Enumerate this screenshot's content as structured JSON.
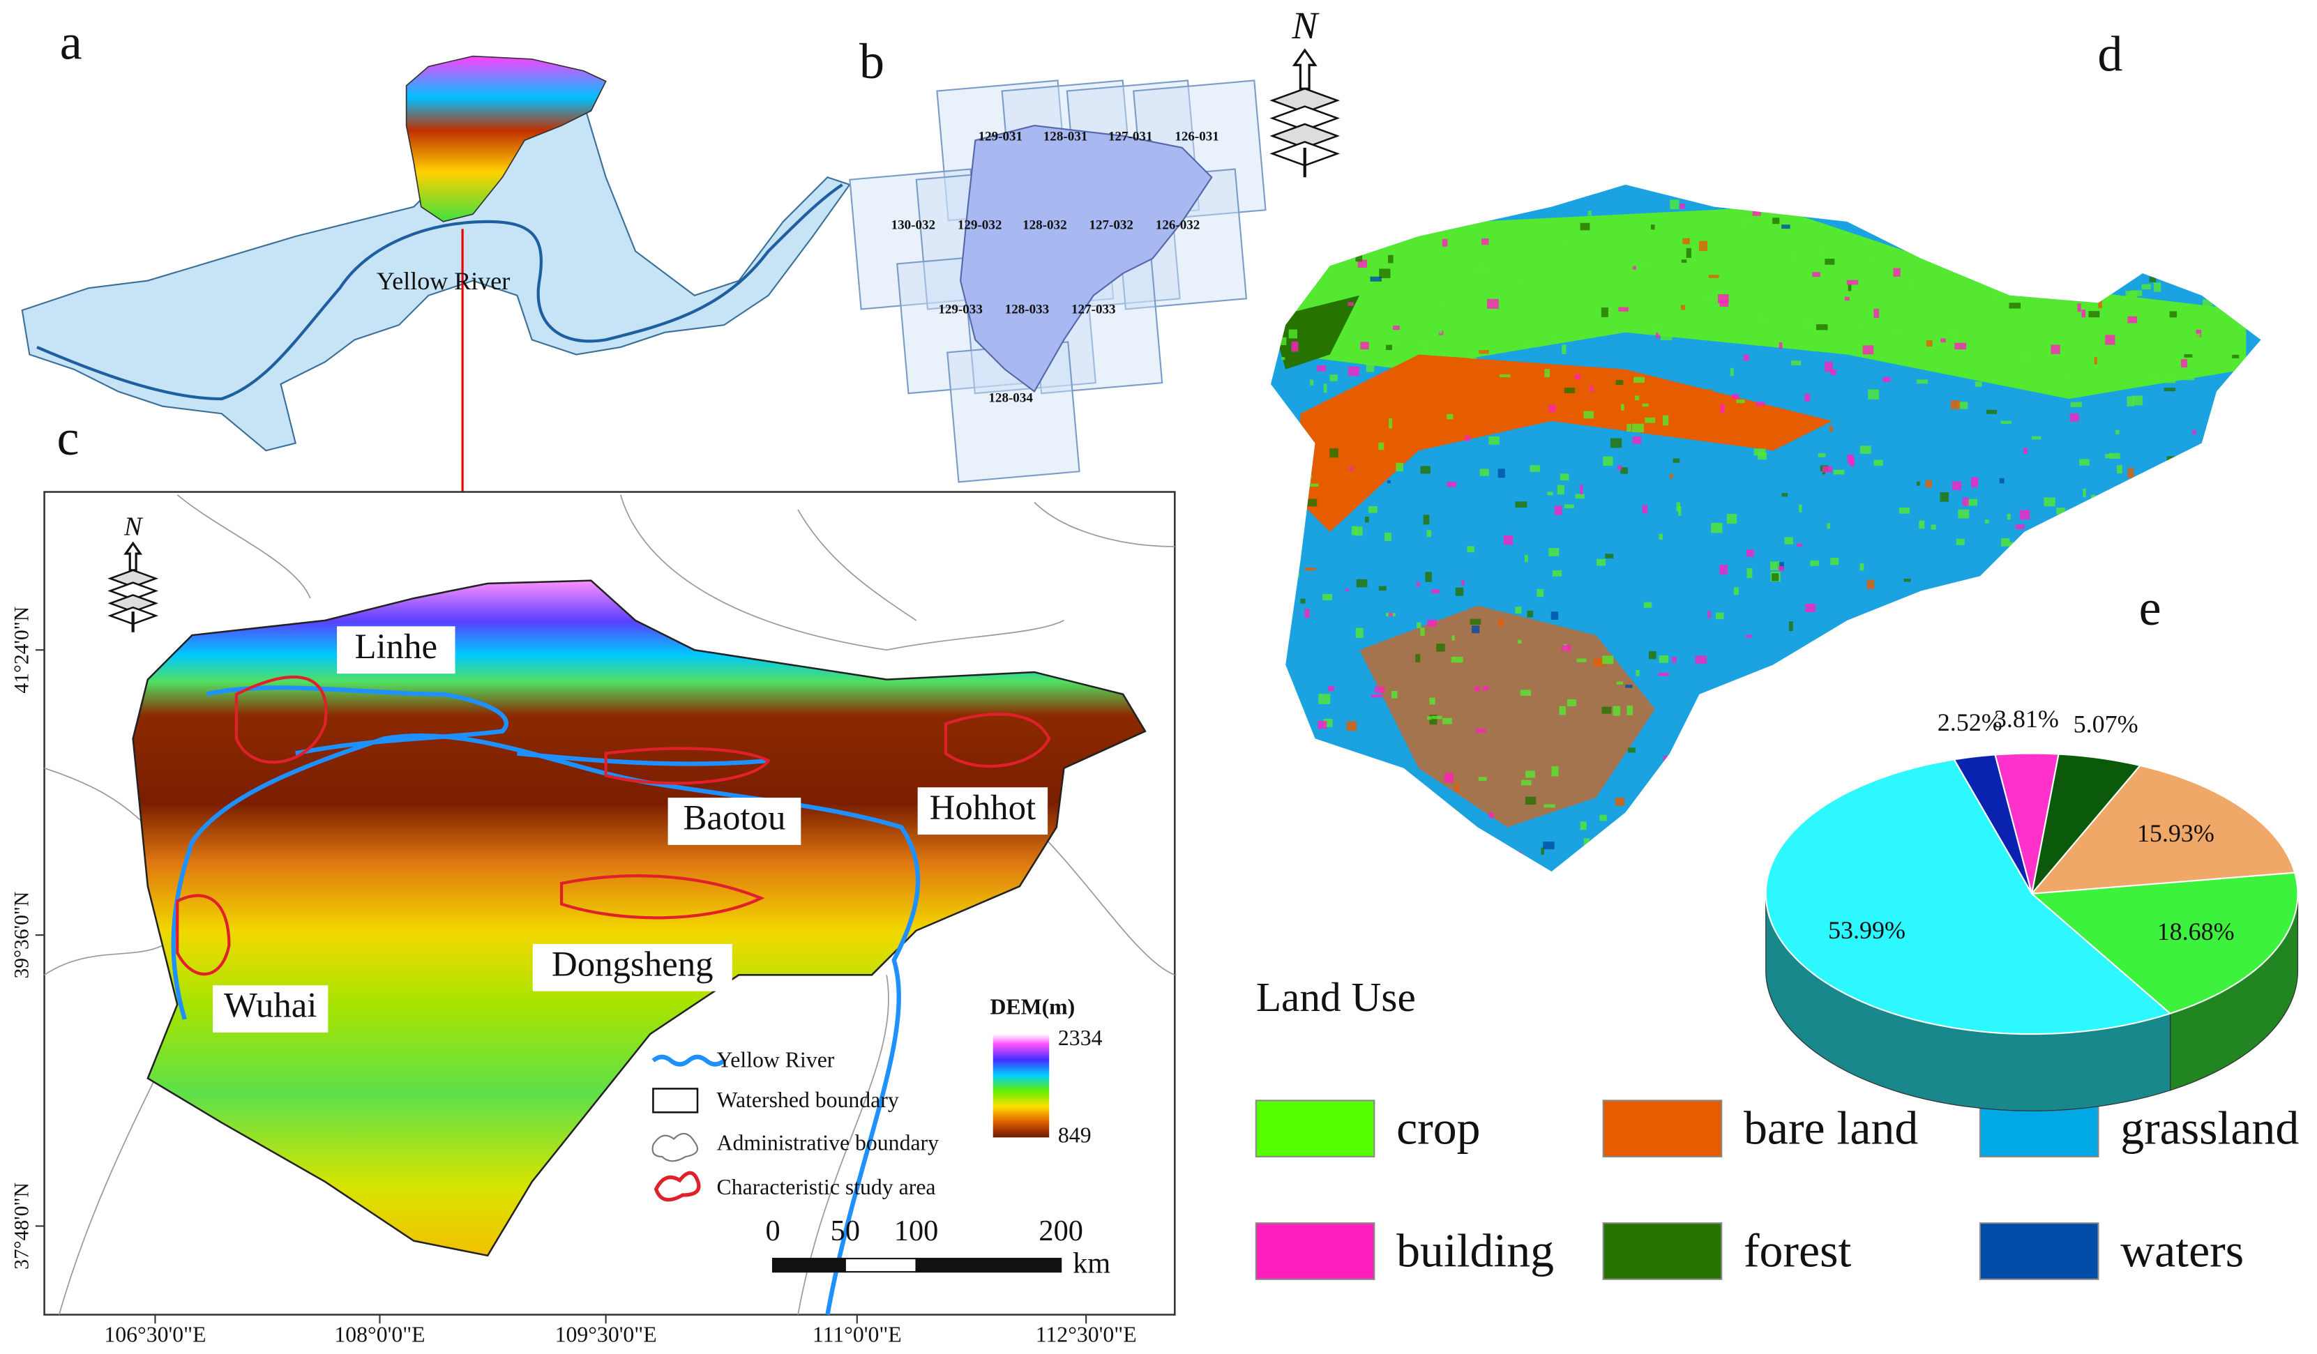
{
  "panel_labels": [
    "a",
    "b",
    "c",
    "d",
    "e"
  ],
  "north_label": "N",
  "panel_a": {
    "river_label": "Yellow River"
  },
  "panel_b": {
    "tiles": [
      "129-031",
      "128-031",
      "127-031",
      "126-031",
      "130-032",
      "129-032",
      "128-032",
      "127-032",
      "126-032",
      "129-033",
      "128-033",
      "127-033",
      "128-034"
    ]
  },
  "panel_c": {
    "cities": [
      "Linhe",
      "Baotou",
      "Hohhot",
      "Dongsheng",
      "Wuhai"
    ],
    "legend": [
      "Yellow River",
      "Watershed boundary",
      "Administrative boundary",
      "Characteristic study area"
    ],
    "dem_title": "DEM(m)",
    "dem_max": 2334,
    "dem_min": 849,
    "scale_labels": [
      0,
      50,
      100,
      200
    ],
    "scale_unit": "km",
    "lat_labels": [
      "41°24'0\"N",
      "39°36'0\"N",
      "37°48'0\"N"
    ],
    "lon_labels": [
      "106°30'0\"E",
      "108°0'0\"E",
      "109°30'0\"E",
      "111°0'0\"E",
      "112°30'0\"E"
    ]
  },
  "chart_data": {
    "type": "pie",
    "title": "Land Use",
    "categories": [
      "crop",
      "bare land",
      "grassland",
      "building",
      "forest",
      "waters"
    ],
    "values": [
      18.68,
      15.93,
      53.99,
      3.81,
      5.07,
      2.52
    ],
    "value_labels": [
      "18.68%",
      "15.93%",
      "53.99%",
      "3.81%",
      "5.07%",
      "2.52%"
    ],
    "colors": [
      "#3cf23c",
      "#f0a868",
      "#2ef8ff",
      "#ff33cc",
      "#0b5a0b",
      "#0a22b0"
    ],
    "legend_colors": [
      "#55ff00",
      "#e65c00",
      "#00a8e6",
      "#ff1fbf",
      "#267300",
      "#004da8"
    ]
  }
}
